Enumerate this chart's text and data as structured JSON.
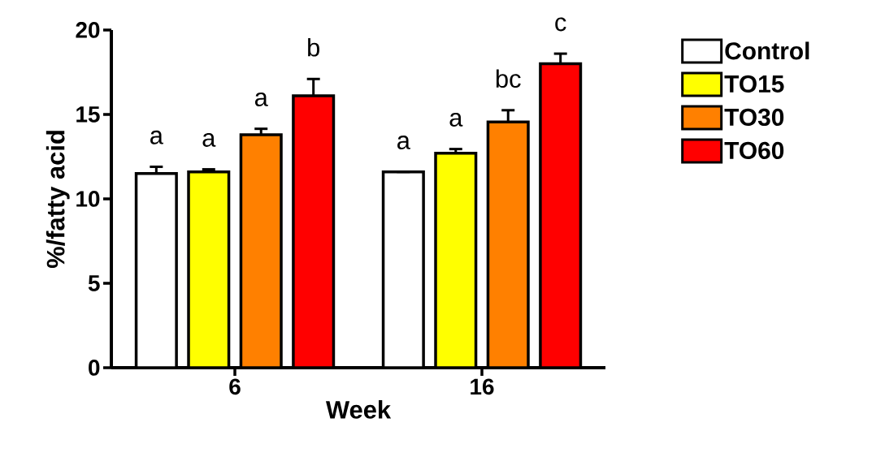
{
  "chart_data": {
    "type": "bar",
    "xlabel": "Week",
    "ylabel": "%/fatty acid",
    "categories": [
      "6",
      "16"
    ],
    "series": [
      {
        "name": "Control",
        "color": "#ffffff",
        "values": [
          11.5,
          11.6
        ],
        "errors": [
          0.4,
          null
        ]
      },
      {
        "name": "TO15",
        "color": "#ffff00",
        "values": [
          11.6,
          12.7
        ],
        "errors": [
          0.15,
          0.25
        ]
      },
      {
        "name": "TO30",
        "color": "#ff8000",
        "values": [
          13.8,
          14.55
        ],
        "errors": [
          0.35,
          0.7
        ]
      },
      {
        "name": "TO60",
        "color": "#ff0000",
        "values": [
          16.1,
          18.0
        ],
        "errors": [
          1.0,
          0.6
        ]
      }
    ],
    "ylim": [
      0,
      20
    ],
    "yticks": [
      0,
      5,
      10,
      15,
      20
    ],
    "legend": "right",
    "grid": false,
    "annotations": [
      "a",
      "a",
      "a",
      "b",
      "a",
      "a",
      "bc",
      "c"
    ]
  }
}
